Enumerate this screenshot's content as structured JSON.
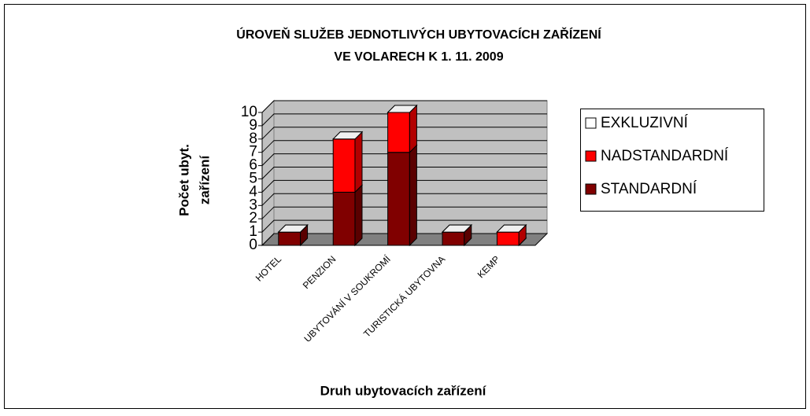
{
  "chart_data": {
    "type": "bar3d_stacked",
    "title": [
      "ÚROVEŇ SLUŽEB JEDNOTLIVÝCH UBYTOVACÍCH ZAŘÍZENÍ",
      "VE VOLARECH K 1. 11. 2009"
    ],
    "y_label": [
      "Počet ubyt.",
      "zařízení"
    ],
    "x_label": "Druh ubytovacích zařízení",
    "categories": [
      "HOTEL",
      "PENZION",
      "UBYTOVÁNÍ V SOUKROMÍ",
      "TURISTICKÁ UBYTOVNA",
      "KEMP"
    ],
    "series": [
      {
        "name": "STANDARDNÍ",
        "color": "#800000",
        "values": [
          1,
          4,
          7,
          1,
          0
        ]
      },
      {
        "name": "NADSTANDARDNÍ",
        "color": "#ff0000",
        "values": [
          0,
          4,
          3,
          0,
          1
        ]
      },
      {
        "name": "EXKLUZIVNÍ",
        "color": "#ffffff",
        "values": [
          0,
          0,
          0,
          0,
          0
        ]
      }
    ],
    "ylim": [
      0,
      10
    ],
    "yticks": [
      0,
      1,
      2,
      3,
      4,
      5,
      6,
      7,
      8,
      9,
      10
    ],
    "grid": true,
    "legend": "right"
  }
}
